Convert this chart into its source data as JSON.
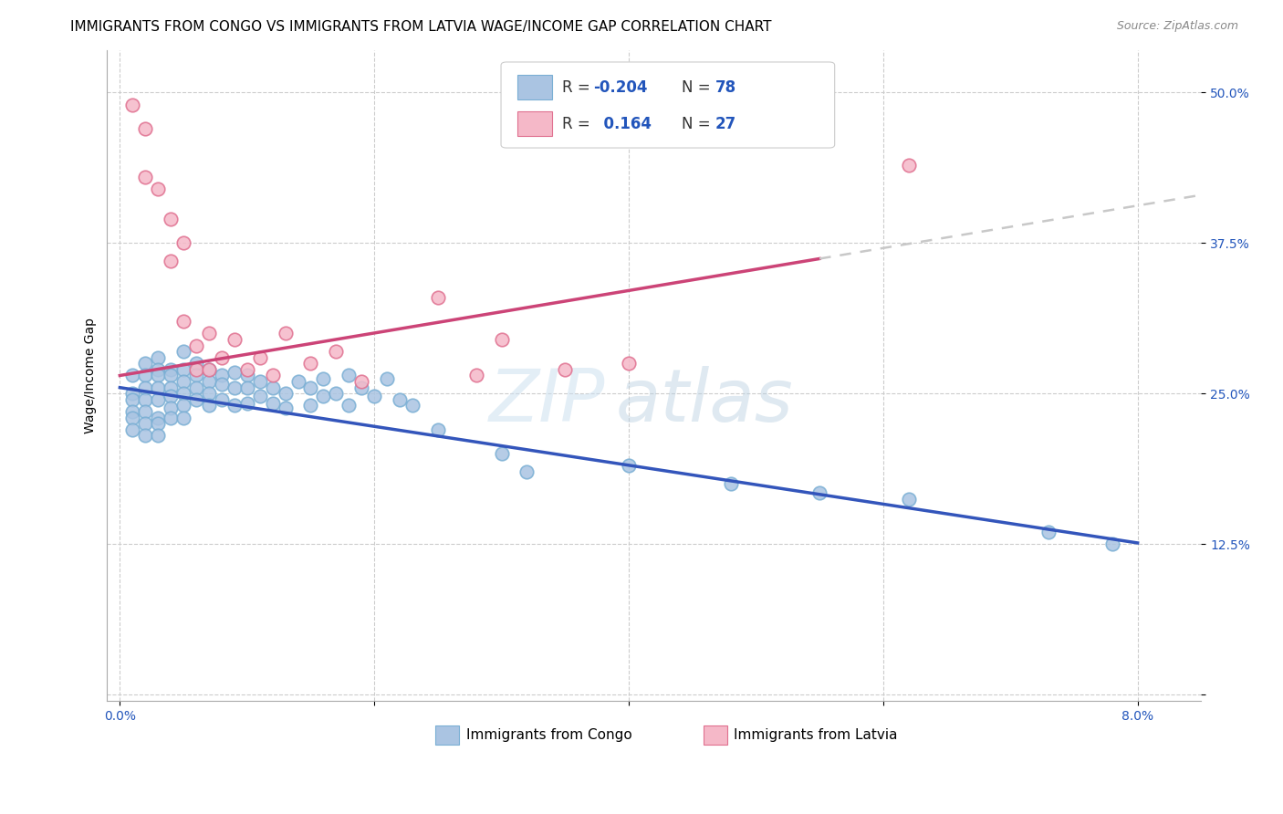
{
  "title": "IMMIGRANTS FROM CONGO VS IMMIGRANTS FROM LATVIA WAGE/INCOME GAP CORRELATION CHART",
  "source": "Source: ZipAtlas.com",
  "ylabel": "Wage/Income Gap",
  "congo_color": "#aac4e2",
  "latvia_color": "#f5b8c8",
  "congo_edge_color": "#7aafd4",
  "latvia_edge_color": "#e07090",
  "congo_line_color": "#3355bb",
  "latvia_line_color": "#cc4477",
  "latvia_dashed_color": "#c8c8c8",
  "R_congo": -0.204,
  "N_congo": 78,
  "R_latvia": 0.164,
  "N_latvia": 27,
  "legend_label_congo": "Immigrants from Congo",
  "legend_label_latvia": "Immigrants from Latvia",
  "watermark_zip": "ZIP",
  "watermark_atlas": "atlas",
  "congo_x": [
    0.001,
    0.001,
    0.001,
    0.001,
    0.001,
    0.001,
    0.002,
    0.002,
    0.002,
    0.002,
    0.002,
    0.002,
    0.002,
    0.003,
    0.003,
    0.003,
    0.003,
    0.003,
    0.003,
    0.003,
    0.003,
    0.004,
    0.004,
    0.004,
    0.004,
    0.004,
    0.004,
    0.005,
    0.005,
    0.005,
    0.005,
    0.005,
    0.005,
    0.006,
    0.006,
    0.006,
    0.006,
    0.007,
    0.007,
    0.007,
    0.007,
    0.008,
    0.008,
    0.008,
    0.009,
    0.009,
    0.009,
    0.01,
    0.01,
    0.01,
    0.011,
    0.011,
    0.012,
    0.012,
    0.013,
    0.013,
    0.014,
    0.015,
    0.015,
    0.016,
    0.016,
    0.017,
    0.018,
    0.018,
    0.019,
    0.02,
    0.021,
    0.022,
    0.023,
    0.025,
    0.03,
    0.032,
    0.04,
    0.048,
    0.055,
    0.062,
    0.073,
    0.078
  ],
  "congo_y": [
    0.265,
    0.25,
    0.245,
    0.235,
    0.23,
    0.22,
    0.275,
    0.265,
    0.255,
    0.245,
    0.235,
    0.225,
    0.215,
    0.28,
    0.27,
    0.265,
    0.255,
    0.245,
    0.23,
    0.225,
    0.215,
    0.27,
    0.265,
    0.255,
    0.248,
    0.238,
    0.23,
    0.285,
    0.27,
    0.26,
    0.25,
    0.24,
    0.23,
    0.275,
    0.265,
    0.255,
    0.245,
    0.27,
    0.26,
    0.25,
    0.24,
    0.265,
    0.258,
    0.245,
    0.268,
    0.255,
    0.24,
    0.265,
    0.255,
    0.242,
    0.26,
    0.248,
    0.255,
    0.242,
    0.25,
    0.238,
    0.26,
    0.255,
    0.24,
    0.262,
    0.248,
    0.25,
    0.265,
    0.24,
    0.255,
    0.248,
    0.262,
    0.245,
    0.24,
    0.22,
    0.2,
    0.185,
    0.19,
    0.175,
    0.168,
    0.162,
    0.135,
    0.125
  ],
  "latvia_x": [
    0.001,
    0.002,
    0.002,
    0.003,
    0.004,
    0.004,
    0.005,
    0.005,
    0.006,
    0.006,
    0.007,
    0.007,
    0.008,
    0.009,
    0.01,
    0.011,
    0.012,
    0.013,
    0.015,
    0.017,
    0.019,
    0.025,
    0.028,
    0.03,
    0.035,
    0.04,
    0.062
  ],
  "latvia_y": [
    0.49,
    0.47,
    0.43,
    0.42,
    0.395,
    0.36,
    0.375,
    0.31,
    0.29,
    0.27,
    0.3,
    0.27,
    0.28,
    0.295,
    0.27,
    0.28,
    0.265,
    0.3,
    0.275,
    0.285,
    0.26,
    0.33,
    0.265,
    0.295,
    0.27,
    0.275,
    0.44
  ],
  "xlim": [
    -0.001,
    0.085
  ],
  "ylim": [
    -0.005,
    0.535
  ],
  "y_tick_vals": [
    0.0,
    0.125,
    0.25,
    0.375,
    0.5
  ],
  "y_tick_labels": [
    "",
    "12.5%",
    "25.0%",
    "37.5%",
    "50.0%"
  ],
  "x_tick_vals": [
    0.0,
    0.02,
    0.04,
    0.06,
    0.08
  ],
  "x_tick_labels": [
    "0.0%",
    "",
    "",
    "",
    "8.0%"
  ],
  "title_fontsize": 11,
  "tick_fontsize": 10,
  "legend_fontsize": 12
}
